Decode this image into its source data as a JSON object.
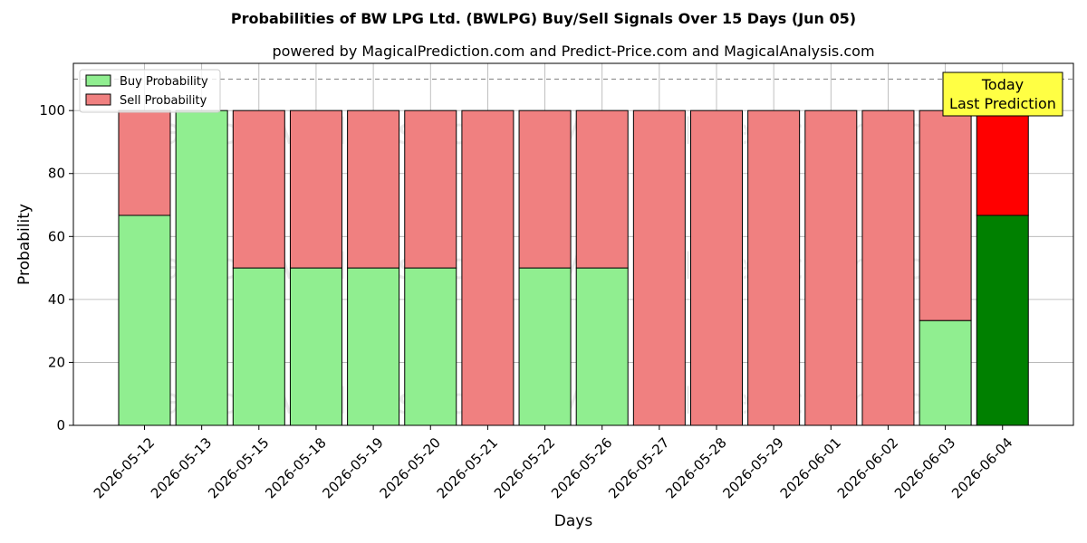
{
  "chart_data": {
    "type": "bar",
    "stacked": true,
    "title": "Probabilities of BW LPG Ltd. (BWLPG) Buy/Sell Signals Over 15 Days (Jun 05)",
    "subtitle": "powered by MagicalPrediction.com and Predict-Price.com and MagicalAnalysis.com",
    "xlabel": "Days",
    "ylabel": "Probability",
    "ylim": [
      0,
      115
    ],
    "yticks": [
      0,
      20,
      40,
      60,
      80,
      100
    ],
    "grid": true,
    "legend_position": "upper-left",
    "reference_line": {
      "y": 110,
      "style": "dashed"
    },
    "categories": [
      "2026-05-12",
      "2026-05-13",
      "2026-05-15",
      "2026-05-18",
      "2026-05-19",
      "2026-05-20",
      "2026-05-21",
      "2026-05-22",
      "2026-05-26",
      "2026-05-27",
      "2026-05-28",
      "2026-05-29",
      "2026-06-01",
      "2026-06-02",
      "2026-06-03",
      "2026-06-04"
    ],
    "series": [
      {
        "name": "Buy Probability",
        "color": "#90EE90",
        "values": [
          66.7,
          100,
          50,
          50,
          50,
          50,
          0,
          50,
          50,
          0,
          0,
          0,
          0,
          0,
          33.3,
          66.7
        ]
      },
      {
        "name": "Sell Probability",
        "color": "#F08080",
        "values": [
          33.3,
          0,
          50,
          50,
          50,
          50,
          100,
          50,
          50,
          100,
          100,
          100,
          100,
          100,
          66.7,
          33.3
        ]
      }
    ],
    "highlight": {
      "index": 15,
      "buy_color": "#008000",
      "sell_color": "#FF0000"
    },
    "annotation": {
      "lines": [
        "Today",
        "Last Prediction"
      ],
      "background": "#FFFF44"
    },
    "watermarks": [
      "MagicalAnalysis.com",
      "MagicalPrediction.com"
    ]
  }
}
